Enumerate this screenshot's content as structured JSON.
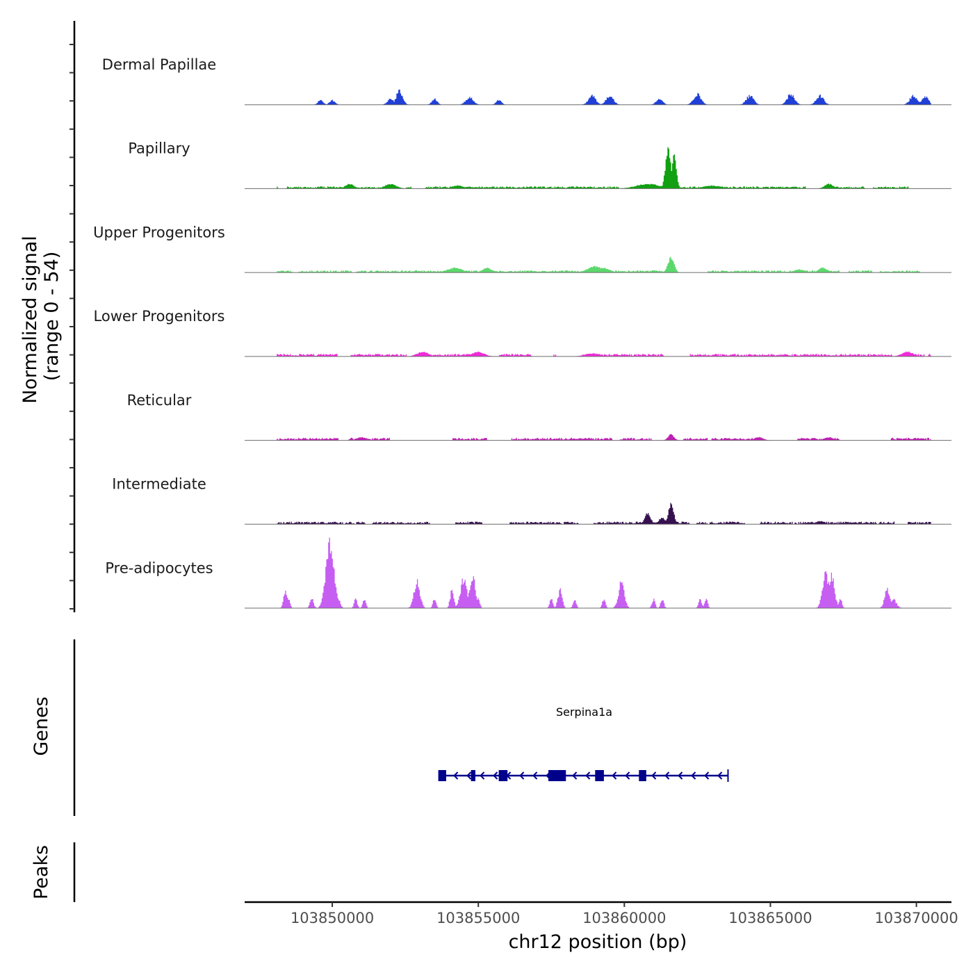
{
  "chart_data": {
    "type": "area",
    "title": "",
    "chromosome": "chr12",
    "xlabel": "chr12 position (bp)",
    "ylabel_line1": "Normalized signal",
    "ylabel_line2": "(range 0 - 54)",
    "ylim": [
      0,
      54
    ],
    "xlim": [
      103847000,
      103871200
    ],
    "x_ticks": [
      103850000,
      103855000,
      103860000,
      103865000,
      103870000
    ],
    "x_tick_labels": [
      "103850000",
      "103855000",
      "103860000",
      "103865000",
      "103870000"
    ],
    "signal_range": [
      103848100,
      103870500
    ],
    "series": [
      {
        "name": "Dermal Papillae",
        "color": "#1f3fd6",
        "style": "sparse",
        "noise": 0,
        "coverage": 0.22,
        "seed": 11,
        "peaks": [
          [
            103849600,
            3,
            100
          ],
          [
            103850000,
            3,
            100
          ],
          [
            103852000,
            4,
            120
          ],
          [
            103852300,
            9,
            120
          ],
          [
            103853500,
            4,
            100
          ],
          [
            103854700,
            5,
            140
          ],
          [
            103855700,
            3,
            100
          ],
          [
            103858900,
            6,
            140
          ],
          [
            103859500,
            6,
            140
          ],
          [
            103861200,
            4,
            120
          ],
          [
            103862500,
            7,
            140
          ],
          [
            103864300,
            6,
            140
          ],
          [
            103865700,
            7,
            140
          ],
          [
            103866700,
            6,
            140
          ],
          [
            103869900,
            6,
            140
          ],
          [
            103870300,
            6,
            120
          ]
        ]
      },
      {
        "name": "Papillary",
        "color": "#11a011",
        "style": "dense",
        "noise": 1.2,
        "coverage": 0.8,
        "seed": 22,
        "peaks": [
          [
            103850600,
            3,
            150
          ],
          [
            103852000,
            3,
            200
          ],
          [
            103854300,
            2,
            200
          ],
          [
            103860800,
            3,
            400
          ],
          [
            103861500,
            25,
            90
          ],
          [
            103861700,
            22,
            80
          ],
          [
            103863000,
            2,
            300
          ],
          [
            103867000,
            3,
            150
          ]
        ]
      },
      {
        "name": "Upper Progenitors",
        "color": "#5cd86c",
        "style": "dense",
        "noise": 1.2,
        "coverage": 0.72,
        "seed": 33,
        "peaks": [
          [
            103854200,
            3,
            250
          ],
          [
            103855300,
            3,
            150
          ],
          [
            103859000,
            4,
            250
          ],
          [
            103859300,
            3,
            200
          ],
          [
            103861600,
            10,
            100
          ],
          [
            103866000,
            2,
            200
          ],
          [
            103866800,
            3,
            150
          ]
        ]
      },
      {
        "name": "Lower Progenitors",
        "color": "#ee2bd8",
        "style": "dense",
        "noise": 1.4,
        "coverage": 0.72,
        "seed": 44,
        "peaks": [
          [
            103853100,
            3,
            200
          ],
          [
            103855000,
            3,
            200
          ],
          [
            103858900,
            2,
            250
          ],
          [
            103869700,
            3,
            200
          ]
        ]
      },
      {
        "name": "Reticular",
        "color": "#c021b5",
        "style": "dense",
        "noise": 1.4,
        "coverage": 0.68,
        "seed": 55,
        "peaks": [
          [
            103851000,
            2,
            150
          ],
          [
            103861600,
            4,
            100
          ],
          [
            103864600,
            2,
            150
          ],
          [
            103867000,
            2,
            150
          ]
        ]
      },
      {
        "name": "Intermediate",
        "color": "#36104f",
        "style": "dense",
        "noise": 1.4,
        "coverage": 0.68,
        "seed": 66,
        "peaks": [
          [
            103860800,
            7,
            100
          ],
          [
            103861300,
            4,
            120
          ],
          [
            103861600,
            13,
            90
          ],
          [
            103866700,
            2,
            150
          ]
        ]
      },
      {
        "name": "Pre-adipocytes",
        "color": "#c65ef2",
        "style": "sparse",
        "noise": 0,
        "coverage": 0,
        "seed": 77,
        "peaks": [
          [
            103848400,
            12,
            70
          ],
          [
            103848500,
            6,
            60
          ],
          [
            103849300,
            6,
            70
          ],
          [
            103849900,
            42,
            140
          ],
          [
            103850000,
            30,
            120
          ],
          [
            103850200,
            6,
            80
          ],
          [
            103850800,
            6,
            60
          ],
          [
            103851100,
            6,
            60
          ],
          [
            103852900,
            18,
            110
          ],
          [
            103853500,
            6,
            60
          ],
          [
            103854100,
            12,
            70
          ],
          [
            103854500,
            20,
            120
          ],
          [
            103854800,
            22,
            110
          ],
          [
            103855000,
            6,
            60
          ],
          [
            103857500,
            6,
            60
          ],
          [
            103857800,
            12,
            80
          ],
          [
            103858300,
            6,
            60
          ],
          [
            103859300,
            6,
            60
          ],
          [
            103859900,
            17,
            110
          ],
          [
            103861000,
            6,
            60
          ],
          [
            103861300,
            6,
            60
          ],
          [
            103862600,
            6,
            60
          ],
          [
            103862800,
            6,
            60
          ],
          [
            103866900,
            24,
            120
          ],
          [
            103867100,
            22,
            110
          ],
          [
            103867400,
            6,
            60
          ],
          [
            103869000,
            12,
            100
          ],
          [
            103869200,
            6,
            120
          ]
        ]
      }
    ],
    "genes": [
      {
        "name": "Serpina1a",
        "start": 103853700,
        "end": 103863550,
        "strand": "-",
        "exons": [
          [
            103853630,
            103853900
          ],
          [
            103854750,
            103854900
          ],
          [
            103855700,
            103856000
          ],
          [
            103857400,
            103858000
          ],
          [
            103859000,
            103859300
          ],
          [
            103860500,
            103860750
          ]
        ]
      }
    ],
    "gene_panel_label": "Genes",
    "peaks_panel_label": "Peaks",
    "peaks": []
  }
}
